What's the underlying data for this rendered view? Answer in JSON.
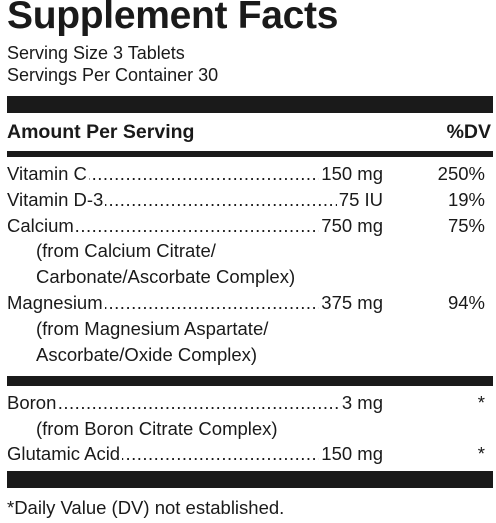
{
  "title": "Supplement Facts",
  "serving_size": "Serving Size 3 Tablets",
  "servings_per_container": "Servings Per Container 30",
  "header": {
    "amount_label": "Amount Per Serving",
    "dv_label": "%DV"
  },
  "dots": "..........................................................................................",
  "nutrients": [
    {
      "name": "Vitamin C",
      "amount": "150 mg",
      "dv": "250%"
    },
    {
      "name": "Vitamin D-3",
      "amount": "75 IU",
      "dv": "19%"
    },
    {
      "name": "Calcium",
      "amount": "750 mg",
      "dv": "75%",
      "source_lines": [
        "(from Calcium Citrate/",
        "Carbonate/Ascorbate Complex)"
      ]
    },
    {
      "name": "Magnesium",
      "amount": "375 mg",
      "dv": "94%",
      "source_lines": [
        "(from Magnesium Aspartate/",
        "Ascorbate/Oxide Complex)"
      ]
    }
  ],
  "other_ingredients": [
    {
      "name": "Boron",
      "amount": "3 mg",
      "dv": "*",
      "source_lines": [
        "(from Boron Citrate Complex)"
      ]
    },
    {
      "name": "Glutamic Acid",
      "amount": "150 mg",
      "dv": "*"
    }
  ],
  "footnote": "*Daily Value (DV) not established."
}
